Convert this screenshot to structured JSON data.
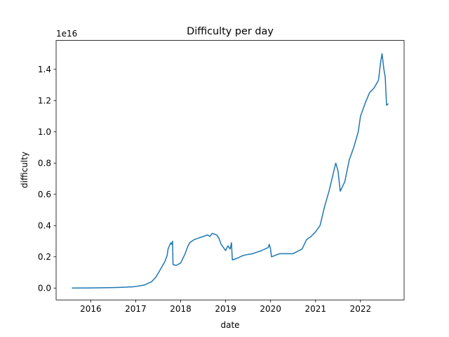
{
  "chart_data": {
    "type": "line",
    "title": "Difficulty per day",
    "xlabel": "date",
    "ylabel": "difficulty",
    "y_offset_label": "1e16",
    "color": "#1f77b4",
    "x": [
      2015.58,
      2016.0,
      2016.5,
      2016.8,
      2016.85,
      2016.9,
      2017.0,
      2017.2,
      2017.35,
      2017.45,
      2017.55,
      2017.65,
      2017.7,
      2017.72,
      2017.75,
      2017.78,
      2017.8,
      2017.82,
      2017.83,
      2017.9,
      2018.0,
      2018.05,
      2018.1,
      2018.15,
      2018.2,
      2018.3,
      2018.4,
      2018.5,
      2018.6,
      2018.65,
      2018.7,
      2018.8,
      2018.85,
      2018.9,
      2019.0,
      2019.05,
      2019.1,
      2019.13,
      2019.15,
      2019.25,
      2019.4,
      2019.6,
      2019.8,
      2019.95,
      2019.97,
      2020.0,
      2020.02,
      2020.2,
      2020.5,
      2020.7,
      2020.8,
      2020.9,
      2021.0,
      2021.1,
      2021.2,
      2021.3,
      2021.4,
      2021.45,
      2021.5,
      2021.55,
      2021.65,
      2021.75,
      2021.85,
      2021.95,
      2022.0,
      2022.1,
      2022.2,
      2022.3,
      2022.4,
      2022.45,
      2022.48,
      2022.52,
      2022.55,
      2022.58,
      2022.62
    ],
    "values": [
      0,
      0.001,
      0.003,
      0.006,
      0.008,
      0.007,
      0.01,
      0.02,
      0.04,
      0.07,
      0.12,
      0.17,
      0.21,
      0.25,
      0.27,
      0.29,
      0.28,
      0.3,
      0.15,
      0.145,
      0.16,
      0.19,
      0.22,
      0.26,
      0.29,
      0.31,
      0.32,
      0.33,
      0.34,
      0.33,
      0.35,
      0.34,
      0.32,
      0.28,
      0.24,
      0.27,
      0.25,
      0.29,
      0.18,
      0.19,
      0.21,
      0.22,
      0.24,
      0.26,
      0.28,
      0.25,
      0.2,
      0.22,
      0.22,
      0.25,
      0.31,
      0.33,
      0.36,
      0.4,
      0.52,
      0.62,
      0.74,
      0.8,
      0.75,
      0.62,
      0.68,
      0.82,
      0.9,
      1.0,
      1.1,
      1.18,
      1.25,
      1.28,
      1.33,
      1.45,
      1.5,
      1.4,
      1.35,
      1.17,
      1.18
    ],
    "xlim": [
      2015.23,
      2022.97
    ],
    "xticks": [
      2016,
      2017,
      2018,
      2019,
      2020,
      2021,
      2022
    ],
    "ylim": [
      -0.076,
      1.585
    ],
    "yticks": [
      {
        "value": 0,
        "label": "0.0"
      },
      0.2,
      0.4,
      0.6,
      0.8,
      {
        "value": 1,
        "label": "1.0"
      },
      1.2,
      1.4
    ]
  }
}
